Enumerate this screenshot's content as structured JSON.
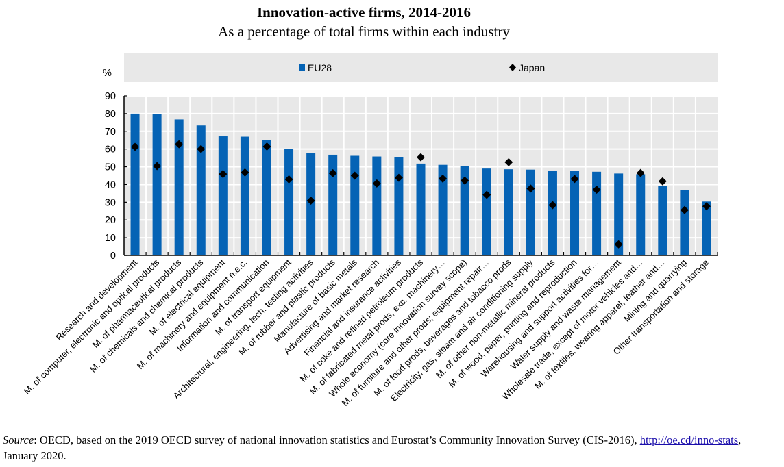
{
  "header": {
    "title": "Innovation-active firms, 2014-2016",
    "subtitle": "As a percentage of total firms within each industry"
  },
  "source": {
    "label": "Source",
    "text_before_link": ": OECD, based on the 2019 OECD survey of national innovation statistics and Eurostat’s Community Innovation Survey (CIS-2016), ",
    "link_text": "http://oe.cd/inno-stats",
    "text_after_link": ", January 2020."
  },
  "colors": {
    "eu28": "#0563b5",
    "japan": "#000000",
    "plot_background": "#e8e8e8",
    "gridline": "#ffffff"
  },
  "chart_data": {
    "type": "bar",
    "title": "Innovation-active firms, 2014-2016",
    "subtitle": "As a percentage of total firms within each industry",
    "xlabel": "",
    "ylabel": "%",
    "ylim": [
      0,
      90
    ],
    "yticks": [
      0,
      10,
      20,
      30,
      40,
      50,
      60,
      70,
      80,
      90
    ],
    "grid": true,
    "legend_position": "top-center",
    "categories": [
      "Research and development",
      "M. of computer, electronic and optical products",
      "M. of pharmaceutical products",
      "M. of chemicals and chemical products",
      "M. of electrical equipment",
      "M. of machinery and equipment n.e.c.",
      "Information and communication",
      "M. of transport equipment",
      "Architectural, engineering, tech. testing activities",
      "M. of rubber and plastic products",
      "Manufacture of basic metals",
      "Advertising and market research",
      "Financial and insurance activities",
      "M. of coke and refined petroleum products",
      "M. of fabricated metal prods, exc. machinery…",
      "Whole economy (core innovation survey scope)",
      "M. of furniture and other prods; equipment repair…",
      "M. of food prods, beverages and tobacco prods",
      "Electricity, gas, steam and air conditioning supply",
      "M. of other non-metallic mineral products",
      "M. of wood, paper, printing and reproduction",
      "Warehousing and support activities for…",
      "Water supply and waste management",
      "Wholesale trade, except of motor vehicles and…",
      "M. of textiles, wearing apparel, leather and…",
      "Mining and quarrying",
      "Other transportation and storage"
    ],
    "series": [
      {
        "name": "EU28",
        "kind": "bar",
        "marker": "square",
        "values": [
          80.0,
          79.9,
          76.7,
          73.3,
          67.2,
          67.0,
          65.1,
          60.2,
          57.9,
          56.8,
          56.2,
          55.8,
          55.6,
          51.8,
          51.1,
          50.4,
          49.0,
          48.6,
          48.4,
          47.9,
          47.7,
          47.2,
          46.2,
          45.8,
          39.4,
          36.8,
          30.4
        ]
      },
      {
        "name": "Japan",
        "kind": "marker",
        "marker": "diamond",
        "values": [
          61.2,
          50.4,
          62.7,
          60.0,
          45.9,
          46.8,
          61.4,
          42.9,
          30.9,
          46.4,
          45.0,
          40.6,
          43.8,
          55.4,
          43.3,
          42.2,
          34.2,
          52.6,
          37.7,
          28.4,
          43.1,
          37.1,
          6.3,
          46.5,
          41.8,
          25.6,
          27.7
        ]
      }
    ]
  }
}
